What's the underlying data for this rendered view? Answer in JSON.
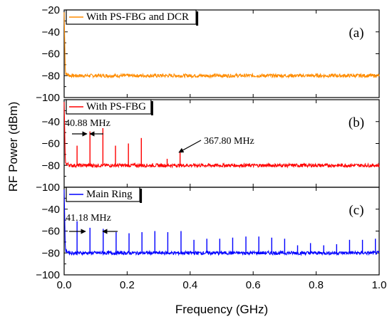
{
  "chart_data": {
    "type": "line",
    "xlabel": "Frequency (GHz)",
    "ylabel": "RF Power (dBm)",
    "xlim": [
      0.0,
      1.0
    ],
    "ylim": [
      -100,
      -20
    ],
    "x_ticks": [
      "0.0",
      "0.2",
      "0.4",
      "0.6",
      "0.8",
      "1.0"
    ],
    "y_ticks": [
      "-20",
      "-40",
      "-60",
      "-80",
      "-100"
    ],
    "grid": false,
    "panels": [
      {
        "letter": "(a)",
        "legend": "With PS-FBG and DCR",
        "color": "#ff8c00",
        "noise_floor_dBm": -80,
        "peaks": [],
        "annotations": []
      },
      {
        "letter": "(b)",
        "legend": "With PS-FBG",
        "color": "#ff0000",
        "noise_floor_dBm": -80,
        "peaks": [
          {
            "x": 0.041,
            "y": -62
          },
          {
            "x": 0.082,
            "y": -49
          },
          {
            "x": 0.123,
            "y": -46
          },
          {
            "x": 0.163,
            "y": -62
          },
          {
            "x": 0.204,
            "y": -60
          },
          {
            "x": 0.245,
            "y": -55
          },
          {
            "x": 0.327,
            "y": -74
          },
          {
            "x": 0.368,
            "y": -67
          }
        ],
        "annotations": [
          "40.88 MHz",
          "367.80 MHz"
        ]
      },
      {
        "letter": "(c)",
        "legend": "Main Ring",
        "color": "#0000ff",
        "noise_floor_dBm": -80,
        "peaks": [
          {
            "x": 0.041,
            "y": -51
          },
          {
            "x": 0.082,
            "y": -57
          },
          {
            "x": 0.124,
            "y": -58
          },
          {
            "x": 0.165,
            "y": -61
          },
          {
            "x": 0.206,
            "y": -62
          },
          {
            "x": 0.247,
            "y": -61
          },
          {
            "x": 0.288,
            "y": -60
          },
          {
            "x": 0.329,
            "y": -61
          },
          {
            "x": 0.371,
            "y": -60
          },
          {
            "x": 0.412,
            "y": -68
          },
          {
            "x": 0.453,
            "y": -67
          },
          {
            "x": 0.494,
            "y": -67
          },
          {
            "x": 0.535,
            "y": -66
          },
          {
            "x": 0.577,
            "y": -65
          },
          {
            "x": 0.618,
            "y": -65
          },
          {
            "x": 0.659,
            "y": -66
          },
          {
            "x": 0.7,
            "y": -67
          },
          {
            "x": 0.741,
            "y": -73
          },
          {
            "x": 0.782,
            "y": -71
          },
          {
            "x": 0.824,
            "y": -73
          },
          {
            "x": 0.865,
            "y": -72
          },
          {
            "x": 0.906,
            "y": -68
          },
          {
            "x": 0.947,
            "y": -68
          },
          {
            "x": 0.988,
            "y": -67
          }
        ],
        "annotations": [
          "41.18 MHz"
        ]
      }
    ]
  }
}
